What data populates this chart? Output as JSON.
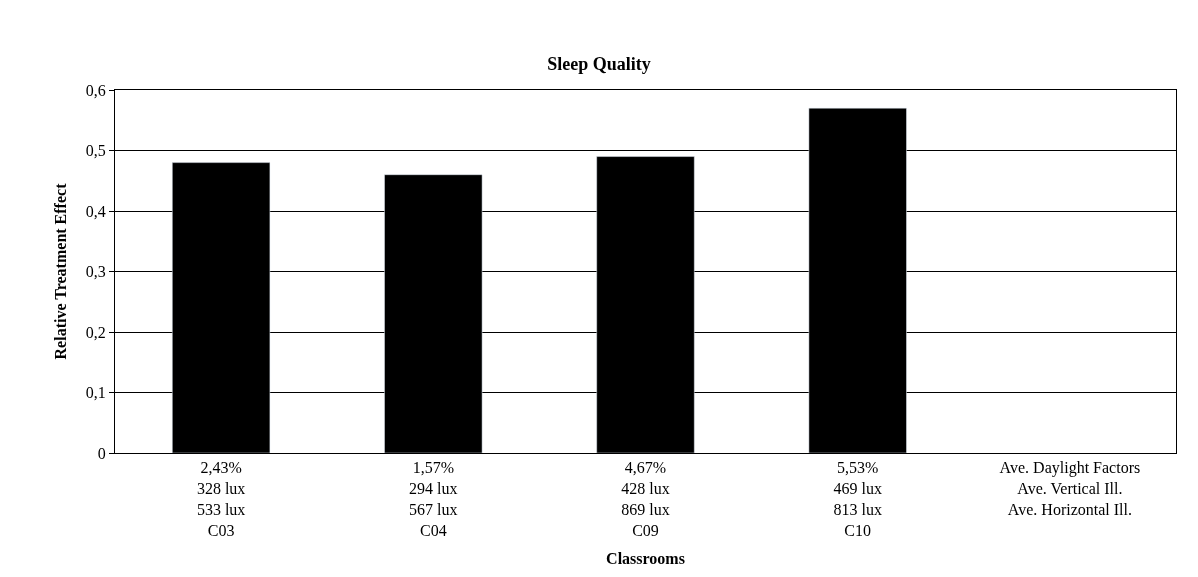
{
  "chart_data": {
    "type": "bar",
    "title": "Sleep Quality",
    "xlabel": "Classrooms",
    "ylabel": "Relative Treatment Effect",
    "categories": [
      "2,43%\n328 lux\n533 lux\nC03",
      "1,57%\n294 lux\n567 lux\nC04",
      "4,67%\n428 lux\n869 lux\nC09",
      "5,53%\n469 lux\n813 lux\nC10",
      "Ave. Daylight Factors\nAve. Vertical Ill.\nAve. Horizontal Ill."
    ],
    "values": [
      0.48,
      0.46,
      0.49,
      0.57,
      null
    ],
    "color": "#000000",
    "ylim": [
      0,
      0.6
    ],
    "yticks": [
      0,
      {
        "value": 0.1,
        "label": "0,1"
      },
      {
        "value": 0.2,
        "label": "0,2"
      },
      {
        "value": 0.3,
        "label": "0,3"
      },
      {
        "value": 0.4,
        "label": "0,4"
      },
      {
        "value": 0.5,
        "label": "0,5"
      },
      {
        "value": 0.6,
        "label": "0,6"
      }
    ],
    "grid": "y"
  }
}
